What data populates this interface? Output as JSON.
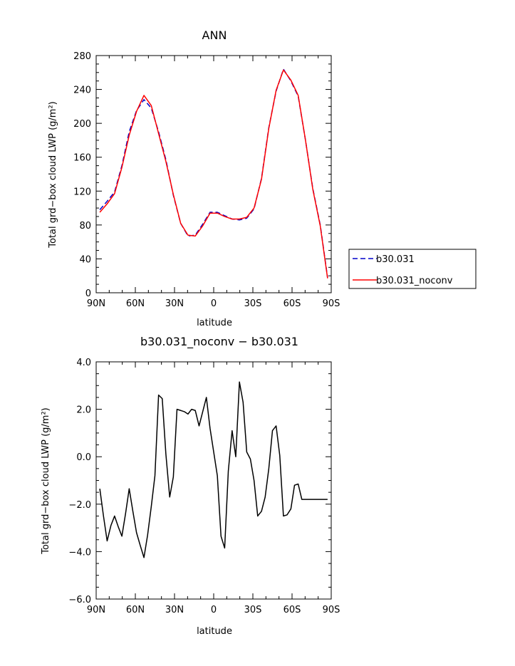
{
  "chart_data": [
    {
      "type": "line",
      "title": "ANN",
      "xlabel": "latitude",
      "ylabel": "Total grd−box cloud LWP (g/m²)",
      "xlim": [
        -90,
        90
      ],
      "ylim": [
        0,
        280
      ],
      "x_ticks": [
        -90,
        -60,
        -30,
        0,
        30,
        60,
        90
      ],
      "x_tick_labels": [
        "90N",
        "60N",
        "30N",
        "0",
        "30S",
        "60S",
        "90S"
      ],
      "y_ticks": [
        0,
        40,
        80,
        120,
        160,
        200,
        240,
        280
      ],
      "y_tick_labels": [
        "0",
        "40",
        "80",
        "120",
        "160",
        "200",
        "240",
        "280"
      ],
      "legend_position": "right",
      "x": [
        -87.2,
        -81.6,
        -75.9,
        -70.3,
        -64.7,
        -59.1,
        -53.4,
        -47.8,
        -42.2,
        -36.6,
        -30.9,
        -25.3,
        -19.7,
        -14.1,
        -8.4,
        -2.8,
        2.8,
        8.4,
        14.1,
        19.7,
        25.3,
        30.9,
        36.6,
        42.2,
        47.8,
        53.4,
        59.1,
        64.7,
        70.3,
        75.9,
        81.6,
        87.2
      ],
      "series": [
        {
          "name": "b30.031",
          "color": "#0000cc",
          "dash": "dashed",
          "values": [
            98,
            108,
            119,
            150,
            190,
            215,
            228,
            218,
            190,
            157,
            115,
            82,
            67,
            68,
            81,
            95,
            95,
            91,
            87,
            86,
            88,
            99,
            135,
            195,
            238,
            264,
            250,
            232,
            180,
            123,
            80,
            18
          ]
        },
        {
          "name": "b30.031_noconv",
          "color": "#ff0000",
          "dash": "solid",
          "values": [
            95,
            105,
            117,
            148,
            186,
            214,
            233,
            221,
            188,
            155,
            116,
            82,
            68,
            67,
            79,
            94,
            94,
            90,
            87,
            87,
            89,
            100,
            134,
            194,
            239,
            263,
            251,
            233,
            180,
            122,
            79,
            17
          ]
        }
      ]
    },
    {
      "type": "line",
      "title": "b30.031_noconv − b30.031",
      "xlabel": "latitude",
      "ylabel": "Total grd−box cloud LWP (g/m²)",
      "xlim": [
        -90,
        90
      ],
      "ylim": [
        -6,
        4
      ],
      "x_ticks": [
        -90,
        -60,
        -30,
        0,
        30,
        60,
        90
      ],
      "x_tick_labels": [
        "90N",
        "60N",
        "30N",
        "0",
        "30S",
        "60S",
        "90S"
      ],
      "y_ticks": [
        -6,
        -4,
        -2,
        0,
        2,
        4
      ],
      "y_tick_labels": [
        "−6.0",
        "−4.0",
        "−2.0",
        "0.0",
        "2.0",
        "4.0"
      ],
      "x": [
        -87.2,
        -84.4,
        -81.6,
        -78.7,
        -75.9,
        -73.1,
        -70.3,
        -67.5,
        -64.7,
        -61.9,
        -59.1,
        -56.2,
        -53.4,
        -50.6,
        -47.8,
        -45.0,
        -42.2,
        -39.4,
        -36.6,
        -33.7,
        -30.9,
        -28.1,
        -25.3,
        -22.5,
        -19.7,
        -16.9,
        -14.1,
        -11.2,
        -8.4,
        -5.6,
        -2.8,
        0.0,
        2.8,
        5.6,
        8.4,
        11.2,
        14.1,
        16.9,
        19.7,
        22.5,
        25.3,
        28.1,
        30.9,
        33.7,
        36.6,
        39.4,
        42.2,
        45.0,
        47.8,
        50.6,
        53.4,
        56.2,
        59.1,
        61.9,
        64.7,
        67.5,
        70.3,
        73.1,
        75.9,
        78.7,
        81.6,
        84.4,
        87.2
      ],
      "series": [
        {
          "color": "#000000",
          "values": [
            -1.35,
            -2.5,
            -3.55,
            -2.9,
            -2.5,
            -2.95,
            -3.35,
            -2.4,
            -1.35,
            -2.3,
            -3.2,
            -3.75,
            -4.25,
            -3.3,
            -2.1,
            -0.8,
            2.6,
            2.45,
            0.1,
            -1.7,
            -0.85,
            2.0,
            1.95,
            1.9,
            1.8,
            2.0,
            1.95,
            1.3,
            1.9,
            2.5,
            1.2,
            0.2,
            -0.8,
            -3.35,
            -3.85,
            -0.6,
            1.1,
            0.0,
            3.15,
            2.3,
            0.2,
            -0.1,
            -1.0,
            -2.5,
            -2.3,
            -1.7,
            -0.5,
            1.1,
            1.3,
            0.05,
            -2.5,
            -2.45,
            -2.2,
            -1.2,
            -1.15,
            -1.8,
            -1.8,
            -1.8,
            -1.8,
            -1.8,
            -1.8,
            -1.8,
            -1.8
          ]
        }
      ]
    }
  ]
}
